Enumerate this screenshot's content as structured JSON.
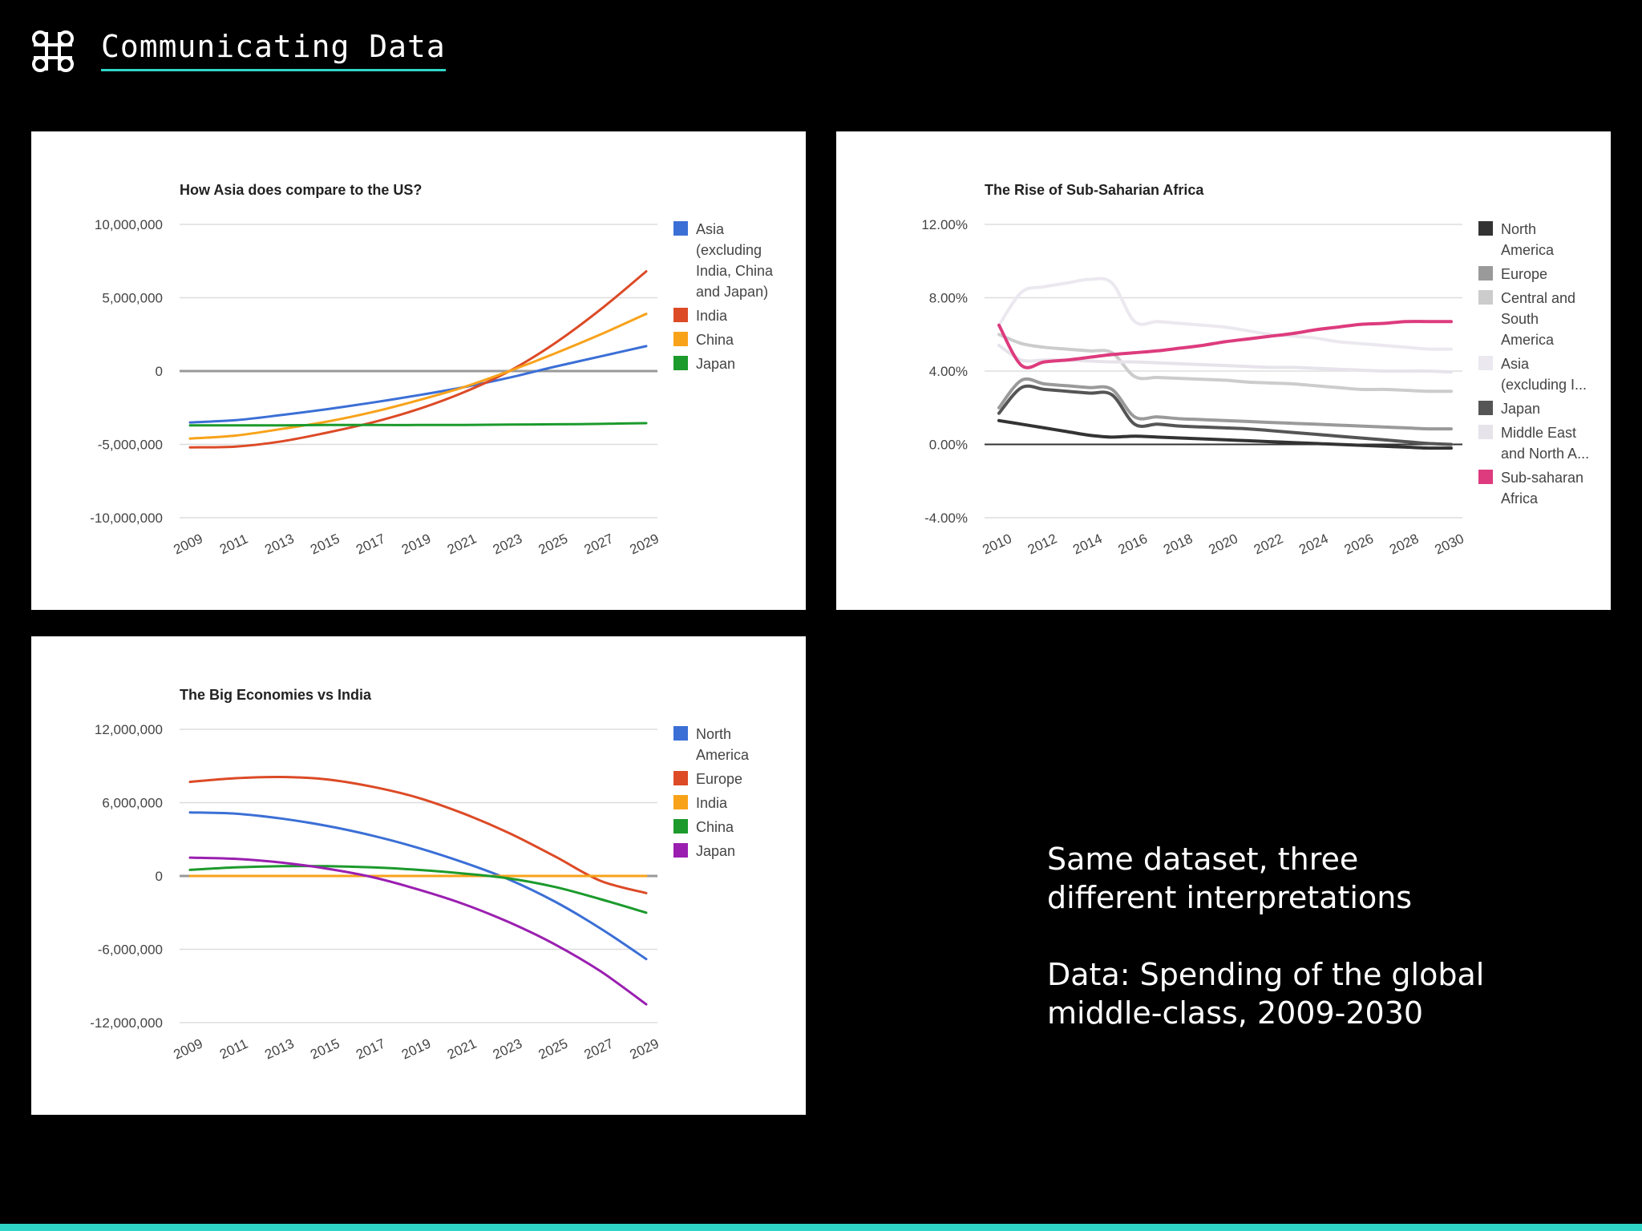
{
  "header": {
    "title": "Communicating Data",
    "logo_icon": "command-key-icon"
  },
  "colors": {
    "accent": "#2fd6c8"
  },
  "captions": [
    "Same dataset, three different interpretations",
    "Data: Spending of the global middle-class, 2009-2030"
  ],
  "chart_data": [
    {
      "type": "line",
      "title": "How Asia does compare to the US?",
      "x": [
        2009,
        2011,
        2013,
        2015,
        2017,
        2019,
        2021,
        2023,
        2025,
        2027,
        2029
      ],
      "x_tick_labels": [
        "2009",
        "2011",
        "2013",
        "2015",
        "2017",
        "2019",
        "2021",
        "2023",
        "2025",
        "2027",
        "2029"
      ],
      "ylim": [
        -10000000,
        10000000
      ],
      "y_ticks": [
        10000000,
        5000000,
        0,
        -5000000,
        -10000000
      ],
      "y_tick_labels": [
        "10,000,000",
        "5,000,000",
        "0",
        "-5,000,000",
        "-10,000,000"
      ],
      "zero_line": true,
      "grid": true,
      "legend": "right",
      "series": [
        {
          "name": "Asia (excluding India, China and Japan)",
          "legend_lines": [
            "Asia",
            "(excluding",
            "India, China",
            "and Japan)"
          ],
          "color": "#3b6fd6",
          "values": [
            -3500000,
            -3350000,
            -3000000,
            -2600000,
            -2150000,
            -1650000,
            -1100000,
            -450000,
            300000,
            1000000,
            1700000
          ]
        },
        {
          "name": "India",
          "legend_lines": [
            "India"
          ],
          "color": "#dc4a26",
          "values": [
            -5200000,
            -5150000,
            -4800000,
            -4200000,
            -3500000,
            -2600000,
            -1450000,
            0,
            1900000,
            4200000,
            6800000
          ]
        },
        {
          "name": "China",
          "legend_lines": [
            "China"
          ],
          "color": "#f8a21a",
          "values": [
            -4600000,
            -4400000,
            -3950000,
            -3450000,
            -2800000,
            -2000000,
            -1100000,
            0,
            1200000,
            2500000,
            3900000
          ]
        },
        {
          "name": "Japan",
          "legend_lines": [
            "Japan"
          ],
          "color": "#1c9a2c",
          "values": [
            -3700000,
            -3700000,
            -3700000,
            -3680000,
            -3680000,
            -3680000,
            -3670000,
            -3650000,
            -3630000,
            -3600000,
            -3550000
          ]
        }
      ]
    },
    {
      "type": "line",
      "title": "The Rise of Sub-Saharian Africa",
      "x": [
        2010,
        2011,
        2012,
        2013,
        2014,
        2015,
        2016,
        2017,
        2018,
        2019,
        2020,
        2021,
        2022,
        2023,
        2024,
        2025,
        2026,
        2027,
        2028,
        2029,
        2030
      ],
      "x_tick_labels": [
        "2010",
        "2012",
        "2014",
        "2016",
        "2018",
        "2020",
        "2022",
        "2024",
        "2026",
        "2028",
        "2030"
      ],
      "ylim": [
        -4,
        12
      ],
      "y_ticks": [
        12,
        8,
        4,
        0,
        -4
      ],
      "y_tick_labels": [
        "12.00%",
        "8.00%",
        "4.00%",
        "0.00%",
        "-4.00%"
      ],
      "zero_line": true,
      "grid": true,
      "legend": "right",
      "series": [
        {
          "name": "North America",
          "legend_lines": [
            "North",
            "America"
          ],
          "color": "#333333",
          "values": [
            1.3,
            1.1,
            0.9,
            0.7,
            0.5,
            0.4,
            0.45,
            0.4,
            0.35,
            0.3,
            0.25,
            0.2,
            0.15,
            0.1,
            0.05,
            0.0,
            -0.05,
            -0.1,
            -0.15,
            -0.2,
            -0.2
          ]
        },
        {
          "name": "Europe",
          "legend_lines": [
            "Europe"
          ],
          "color": "#9a9a9a",
          "values": [
            2.0,
            3.5,
            3.3,
            3.2,
            3.1,
            3.0,
            1.5,
            1.5,
            1.4,
            1.35,
            1.3,
            1.25,
            1.2,
            1.15,
            1.1,
            1.05,
            1.0,
            0.95,
            0.9,
            0.85,
            0.85
          ]
        },
        {
          "name": "Central and South America",
          "legend_lines": [
            "Central and",
            "South",
            "America"
          ],
          "color": "#cccccc",
          "values": [
            6.0,
            5.5,
            5.3,
            5.2,
            5.1,
            5.0,
            3.7,
            3.65,
            3.6,
            3.55,
            3.5,
            3.4,
            3.35,
            3.3,
            3.2,
            3.1,
            3.0,
            3.0,
            2.95,
            2.9,
            2.9
          ]
        },
        {
          "name": "Asia (excluding India, China and Japan)",
          "legend_lines": [
            "Asia",
            "(excluding I..."
          ],
          "color": "#ebe8ef",
          "values": [
            6.5,
            8.3,
            8.6,
            8.8,
            9.0,
            8.8,
            6.7,
            6.7,
            6.6,
            6.5,
            6.4,
            6.2,
            6.0,
            5.9,
            5.8,
            5.6,
            5.5,
            5.4,
            5.3,
            5.2,
            5.2
          ]
        },
        {
          "name": "Japan",
          "legend_lines": [
            "Japan"
          ],
          "color": "#555555",
          "values": [
            1.7,
            3.1,
            3.0,
            2.9,
            2.8,
            2.7,
            1.1,
            1.1,
            1.0,
            0.95,
            0.9,
            0.85,
            0.75,
            0.65,
            0.55,
            0.45,
            0.35,
            0.25,
            0.15,
            0.05,
            0.0
          ]
        },
        {
          "name": "Middle East and North Africa",
          "legend_lines": [
            "Middle East",
            "and North A..."
          ],
          "color": "#e6e3ea",
          "values": [
            5.4,
            4.6,
            4.6,
            4.6,
            4.55,
            4.5,
            4.5,
            4.45,
            4.4,
            4.35,
            4.3,
            4.25,
            4.2,
            4.2,
            4.15,
            4.1,
            4.05,
            4.0,
            4.0,
            4.0,
            3.95
          ]
        },
        {
          "name": "Sub-saharan Africa",
          "legend_lines": [
            "Sub-saharan",
            "Africa"
          ],
          "color": "#dd3b7e",
          "values": [
            6.5,
            4.3,
            4.5,
            4.6,
            4.75,
            4.9,
            5.0,
            5.1,
            5.25,
            5.4,
            5.6,
            5.75,
            5.9,
            6.05,
            6.25,
            6.4,
            6.55,
            6.6,
            6.7,
            6.7,
            6.7
          ]
        }
      ]
    },
    {
      "type": "line",
      "title": "The Big Economies vs India",
      "x": [
        2009,
        2011,
        2013,
        2015,
        2017,
        2019,
        2021,
        2023,
        2025,
        2027,
        2029
      ],
      "x_tick_labels": [
        "2009",
        "2011",
        "2013",
        "2015",
        "2017",
        "2019",
        "2021",
        "2023",
        "2025",
        "2027",
        "2029"
      ],
      "ylim": [
        -12000000,
        12000000
      ],
      "y_ticks": [
        12000000,
        6000000,
        0,
        -6000000,
        -12000000
      ],
      "y_tick_labels": [
        "12,000,000",
        "6,000,000",
        "0",
        "-6,000,000",
        "-12,000,000"
      ],
      "zero_line": true,
      "grid": true,
      "legend": "right",
      "series": [
        {
          "name": "North America",
          "legend_lines": [
            "North",
            "America"
          ],
          "color": "#3b6fd6",
          "values": [
            5200000,
            5100000,
            4700000,
            4100000,
            3300000,
            2300000,
            1100000,
            -300000,
            -2100000,
            -4300000,
            -6800000
          ]
        },
        {
          "name": "Europe",
          "legend_lines": [
            "Europe"
          ],
          "color": "#dc4a26",
          "values": [
            7700000,
            8000000,
            8100000,
            7900000,
            7300000,
            6400000,
            5100000,
            3500000,
            1600000,
            -400000,
            -1400000
          ]
        },
        {
          "name": "India",
          "legend_lines": [
            "India"
          ],
          "color": "#f8a21a",
          "values": [
            0,
            0,
            0,
            0,
            0,
            0,
            0,
            0,
            0,
            0,
            0
          ]
        },
        {
          "name": "China",
          "legend_lines": [
            "China"
          ],
          "color": "#1c9a2c",
          "values": [
            500000,
            700000,
            800000,
            800000,
            700000,
            500000,
            200000,
            -200000,
            -900000,
            -1900000,
            -3000000
          ]
        },
        {
          "name": "Japan",
          "legend_lines": [
            "Japan"
          ],
          "color": "#9a1fb0",
          "values": [
            1500000,
            1400000,
            1100000,
            600000,
            -100000,
            -1100000,
            -2300000,
            -3800000,
            -5600000,
            -7800000,
            -10500000
          ]
        }
      ]
    }
  ]
}
